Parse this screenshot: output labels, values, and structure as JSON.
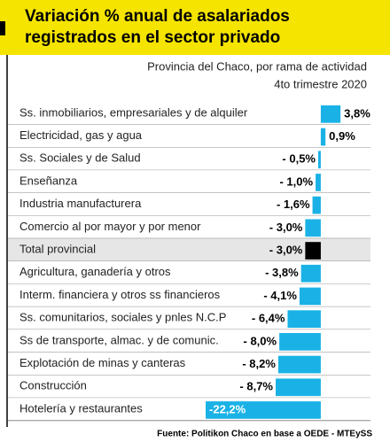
{
  "chart_data": {
    "type": "bar",
    "orientation": "horizontal",
    "title": [
      "Variación % anual de asalariados",
      "registrados en el sector privado"
    ],
    "subtitle": [
      "Provincia del Chaco, por rama de actividad",
      "4to trimestre 2020"
    ],
    "source": "Fuente: Politikon Chaco en base a OEDE - MTEySS",
    "categories": [
      "Ss. inmobiliarios, empresariales y de alquiler",
      "Electricidad, gas y agua",
      "Ss. Sociales y de Salud",
      "Enseñanza",
      "Industria manufacturera",
      "Comercio al por mayor y por menor",
      "Total provincial",
      "Agricultura, ganadería y otros",
      "Interm. financiera y otros ss financieros",
      "Ss. comunitarios, sociales y pnles N.C.P",
      "Ss de transporte, almac. y de comunic.",
      "Explotación de minas y canteras",
      "Construcción",
      "Hotelería y restaurantes"
    ],
    "values": [
      3.8,
      0.9,
      -0.5,
      -1.0,
      -1.6,
      -3.0,
      -3.0,
      -3.8,
      -4.1,
      -6.4,
      -8.0,
      -8.2,
      -8.7,
      -22.2
    ],
    "value_labels": [
      "3,8%",
      "0,9%",
      "- 0,5%",
      "- 1,0%",
      "- 1,6%",
      "- 3,0%",
      "- 3,0%",
      "-  3,8%",
      "- 4,1%",
      "- 6,4%",
      "- 8,0%",
      "- 8,2%",
      "- 8,7%",
      "-22,2%"
    ],
    "colors": [
      "#1ab2e6",
      "#1ab2e6",
      "#1ab2e6",
      "#1ab2e6",
      "#1ab2e6",
      "#1ab2e6",
      "#000000",
      "#1ab2e6",
      "#1ab2e6",
      "#1ab2e6",
      "#1ab2e6",
      "#1ab2e6",
      "#1ab2e6",
      "#1ab2e6"
    ],
    "row_colors": [
      "#ffffff",
      "#ffffff",
      "#ffffff",
      "#ffffff",
      "#ffffff",
      "#ffffff",
      "#e6e6e6",
      "#ffffff",
      "#ffffff",
      "#ffffff",
      "#ffffff",
      "#ffffff",
      "#ffffff",
      "#ffffff"
    ],
    "xlim": [
      -23.4,
      4.8
    ]
  }
}
